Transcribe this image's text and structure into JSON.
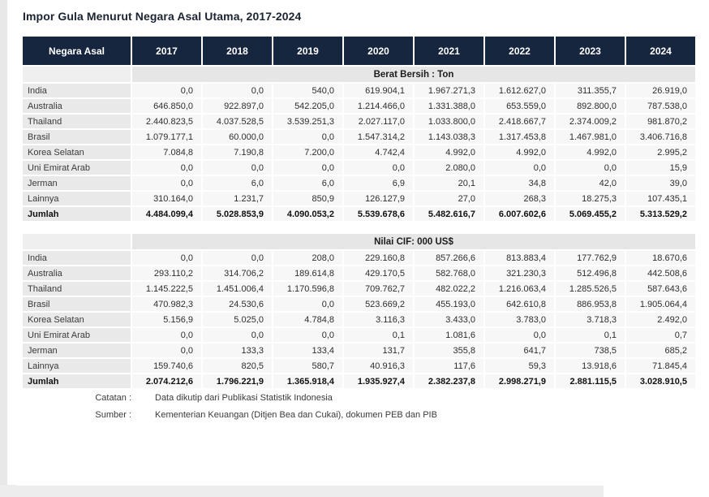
{
  "title": "Impor Gula Menurut Negara Asal Utama, 2017-2024",
  "colors": {
    "header_bg": "#17263f",
    "header_text": "#ffffff",
    "row_label_bg": "#e9e9ea",
    "cell_bg": "#f7f7f8",
    "band_bg": "#e6e6e7",
    "band_left_bg": "#efeff0"
  },
  "table": {
    "header": [
      "Negara Asal",
      "2017",
      "2018",
      "2019",
      "2020",
      "2021",
      "2022",
      "2023",
      "2024"
    ],
    "sections": [
      {
        "label": "Berat Bersih : Ton",
        "rows": [
          {
            "name": "India",
            "values": [
              "0,0",
              "0,0",
              "540,0",
              "619.904,1",
              "1.967.271,3",
              "1.612.627,0",
              "311.355,7",
              "26.919,0"
            ]
          },
          {
            "name": "Australia",
            "values": [
              "646.850,0",
              "922.897,0",
              "542.205,0",
              "1.214.466,0",
              "1.331.388,0",
              "653.559,0",
              "892.800,0",
              "787.538,0"
            ]
          },
          {
            "name": "Thailand",
            "values": [
              "2.440.823,5",
              "4.037.528,5",
              "3.539.251,3",
              "2.027.117,0",
              "1.033.800,0",
              "2.418.667,7",
              "2.374.009,2",
              "981.870,2"
            ]
          },
          {
            "name": "Brasil",
            "values": [
              "1.079.177,1",
              "60.000,0",
              "0,0",
              "1.547.314,2",
              "1.143.038,3",
              "1.317.453,8",
              "1.467.981,0",
              "3.406.716,8"
            ]
          },
          {
            "name": "Korea Selatan",
            "values": [
              "7.084,8",
              "7.190,8",
              "7.200,0",
              "4.742,4",
              "4.992,0",
              "4.992,0",
              "4.992,0",
              "2.995,2"
            ]
          },
          {
            "name": "Uni Emirat Arab",
            "values": [
              "0,0",
              "0,0",
              "0,0",
              "0,0",
              "2.080,0",
              "0,0",
              "0,0",
              "15,9"
            ]
          },
          {
            "name": "Jerman",
            "values": [
              "0,0",
              "6,0",
              "6,0",
              "6,9",
              "20,1",
              "34,8",
              "42,0",
              "39,0"
            ]
          },
          {
            "name": "Lainnya",
            "values": [
              "310.164,0",
              "1.231,7",
              "850,9",
              "126.127,9",
              "27,0",
              "268,3",
              "18.275,3",
              "107.435,1"
            ]
          },
          {
            "name": "Jumlah",
            "bold": true,
            "values": [
              "4.484.099,4",
              "5.028.853,9",
              "4.090.053,2",
              "5.539.678,6",
              "5.482.616,7",
              "6.007.602,6",
              "5.069.455,2",
              "5.313.529,2"
            ]
          }
        ]
      },
      {
        "label": "Nilai CIF: 000 US$",
        "rows": [
          {
            "name": "India",
            "values": [
              "0,0",
              "0,0",
              "208,0",
              "229.160,8",
              "857.266,6",
              "813.883,4",
              "177.762,9",
              "18.670,6"
            ]
          },
          {
            "name": "Australia",
            "values": [
              "293.110,2",
              "314.706,2",
              "189.614,8",
              "429.170,5",
              "582.768,0",
              "321.230,3",
              "512.496,8",
              "442.508,6"
            ]
          },
          {
            "name": "Thailand",
            "values": [
              "1.145.222,5",
              "1.451.006,4",
              "1.170.596,8",
              "709.762,7",
              "482.022,2",
              "1.216.063,4",
              "1.285.526,5",
              "587.643,6"
            ]
          },
          {
            "name": "Brasil",
            "values": [
              "470.982,3",
              "24.530,6",
              "0,0",
              "523.669,2",
              "455.193,0",
              "642.610,8",
              "886.953,8",
              "1.905.064,4"
            ]
          },
          {
            "name": "Korea Selatan",
            "values": [
              "5.156,9",
              "5.025,0",
              "4.784,8",
              "3.116,3",
              "3.433,0",
              "3.783,0",
              "3.718,3",
              "2.492,0"
            ]
          },
          {
            "name": "Uni Emirat Arab",
            "values": [
              "0,0",
              "0,0",
              "0,0",
              "0,1",
              "1.081,6",
              "0,0",
              "0,1",
              "0,7"
            ]
          },
          {
            "name": "Jerman",
            "values": [
              "0,0",
              "133,3",
              "133,4",
              "131,7",
              "355,8",
              "641,7",
              "738,5",
              "685,2"
            ]
          },
          {
            "name": "Lainnya",
            "values": [
              "159.740,6",
              "820,5",
              "580,7",
              "40.916,3",
              "117,6",
              "59,3",
              "13.918,6",
              "71.845,4"
            ]
          },
          {
            "name": "Jumlah",
            "bold": true,
            "values": [
              "2.074.212,6",
              "1.796.221,9",
              "1.365.918,4",
              "1.935.927,4",
              "2.382.237,8",
              "2.998.271,9",
              "2.881.115,5",
              "3.028.910,5"
            ]
          }
        ]
      }
    ]
  },
  "footer": {
    "catatan_label": "Catatan :",
    "catatan_text": "Data dikutip dari Publikasi Statistik Indonesia",
    "sumber_label": "Sumber :",
    "sumber_text": "Kementerian Keuangan (Ditjen Bea dan Cukai), dokumen PEB dan PIB"
  }
}
